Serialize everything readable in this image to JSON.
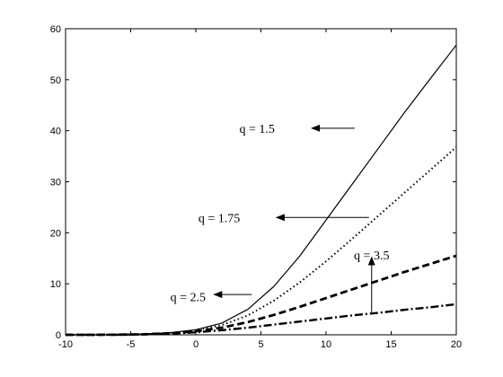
{
  "chart_data": {
    "type": "line",
    "title": "",
    "xlabel": "",
    "ylabel": "",
    "xlim": [
      -10,
      20
    ],
    "ylim": [
      0,
      60
    ],
    "grid": false,
    "x_ticks": [
      -10,
      -5,
      0,
      5,
      10,
      15,
      20
    ],
    "y_ticks": [
      0,
      10,
      20,
      30,
      40,
      50,
      60
    ],
    "x_tick_labels": [
      "-10",
      "-5",
      "0",
      "5",
      "10",
      "15",
      "20"
    ],
    "y_tick_labels": [
      "0",
      "10",
      "20",
      "30",
      "40",
      "50",
      "60"
    ],
    "series": [
      {
        "name": "q = 1.5",
        "line_style": "solid",
        "x": [
          -10,
          -8,
          -6,
          -4,
          -2,
          0,
          2,
          4,
          6,
          8,
          10,
          12,
          14,
          16,
          18,
          20
        ],
        "y": [
          0.0,
          0.0,
          0.05,
          0.15,
          0.4,
          1.0,
          2.3,
          5.0,
          9.5,
          15.5,
          22.5,
          29.5,
          36.5,
          43.5,
          50.2,
          56.8
        ]
      },
      {
        "name": "q = 1.75",
        "line_style": "dotted",
        "x": [
          -10,
          -8,
          -6,
          -4,
          -2,
          0,
          2,
          4,
          6,
          8,
          10,
          12,
          14,
          16,
          18,
          20
        ],
        "y": [
          0.0,
          0.0,
          0.04,
          0.12,
          0.35,
          0.9,
          1.9,
          3.8,
          6.7,
          10.3,
          14.4,
          18.8,
          23.3,
          27.8,
          32.3,
          36.8
        ]
      },
      {
        "name": "q = 2.5",
        "line_style": "dashed",
        "x": [
          -10,
          -8,
          -6,
          -4,
          -2,
          0,
          2,
          4,
          6,
          8,
          10,
          12,
          14,
          16,
          18,
          20
        ],
        "y": [
          0.0,
          0.0,
          0.03,
          0.1,
          0.3,
          0.7,
          1.4,
          2.5,
          3.9,
          5.5,
          7.2,
          8.9,
          10.6,
          12.3,
          13.9,
          15.5
        ]
      },
      {
        "name": "q = 3.5",
        "line_style": "dash-dot",
        "x": [
          -10,
          -8,
          -6,
          -4,
          -2,
          0,
          2,
          4,
          6,
          8,
          10,
          12,
          14,
          16,
          18,
          20
        ],
        "y": [
          0.0,
          0.0,
          0.02,
          0.08,
          0.22,
          0.5,
          0.9,
          1.4,
          2.0,
          2.6,
          3.2,
          3.8,
          4.3,
          4.9,
          5.4,
          6.0
        ]
      }
    ],
    "annotations": [
      {
        "text": "q = 1.5",
        "series": 0,
        "label_at": [
          4.7,
          40.5
        ],
        "arrow_from": [
          12.2,
          40.5
        ],
        "arrow_to": [
          8.9,
          40.5
        ]
      },
      {
        "text": "q = 1.75",
        "series": 1,
        "label_at": [
          1.8,
          23.0
        ],
        "arrow_from": [
          13.3,
          23.0
        ],
        "arrow_to": [
          6.2,
          23.0
        ]
      },
      {
        "text": "q = 2.5",
        "series": 2,
        "label_at": [
          -0.6,
          7.5
        ],
        "arrow_from": [
          4.3,
          7.9
        ],
        "arrow_to": [
          1.4,
          7.9
        ]
      },
      {
        "text": "q = 3.5",
        "series": 3,
        "label_at": [
          13.5,
          15.7
        ],
        "arrow_from": [
          13.5,
          4.0
        ],
        "arrow_to": [
          13.5,
          15.2
        ]
      }
    ]
  }
}
